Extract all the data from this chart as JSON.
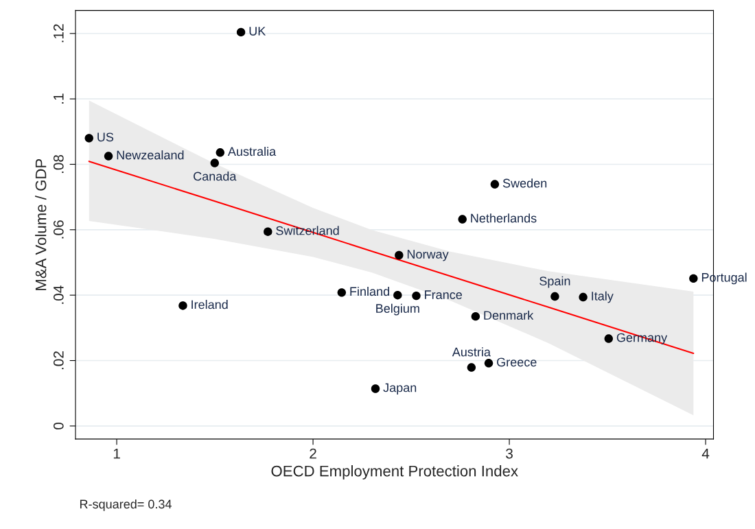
{
  "chart_data": {
    "type": "scatter",
    "xlabel": "OECD Employment Protection Index",
    "ylabel": "M&A Volume / GDP",
    "xlim": [
      0.79,
      4.04
    ],
    "ylim": [
      -0.004,
      0.127
    ],
    "xticks": [
      1,
      2,
      3,
      4
    ],
    "yticks": [
      {
        "value": 0,
        "label": "0"
      },
      {
        "value": 0.02,
        "label": ".02"
      },
      {
        "value": 0.04,
        "label": ".04"
      },
      {
        "value": 0.06,
        "label": ".06"
      },
      {
        "value": 0.08,
        "label": ".08"
      },
      {
        "value": 0.1,
        "label": ".1"
      },
      {
        "value": 0.12,
        "label": ".12"
      }
    ],
    "grid": "y",
    "legend": false,
    "series": [
      {
        "marker": "circle",
        "color": "#000000",
        "x": [
          1.633,
          0.859,
          0.958,
          1.527,
          1.499,
          1.77,
          1.337,
          2.146,
          2.431,
          2.526,
          2.438,
          2.761,
          2.926,
          2.828,
          2.895,
          2.807,
          2.318,
          3.232,
          3.376,
          3.506,
          3.938
        ],
        "values": [
          0.1204,
          0.088,
          0.0825,
          0.0836,
          0.0804,
          0.0594,
          0.0368,
          0.0408,
          0.04,
          0.0398,
          0.0522,
          0.0632,
          0.0739,
          0.0335,
          0.0192,
          0.0179,
          0.0114,
          0.0396,
          0.0394,
          0.0267,
          0.0451
        ]
      },
      {
        "type": "line",
        "color": "#ff0000",
        "x": [
          0.859,
          1.5,
          2.0,
          2.3,
          2.7,
          3.2,
          3.938
        ],
        "values": [
          0.0809,
          0.0687,
          0.0592,
          0.0534,
          0.0458,
          0.0363,
          0.0222
        ],
        "lower": [
          0.0627,
          0.0572,
          0.0517,
          0.0469,
          0.0383,
          0.0253,
          0.0033
        ],
        "upper": [
          0.0995,
          0.0802,
          0.0667,
          0.0599,
          0.0533,
          0.0473,
          0.0411
        ]
      }
    ],
    "annotations": [
      {
        "text": "UK",
        "x": 1.633,
        "y": 0.1204
      },
      {
        "text": "US",
        "x": 0.859,
        "y": 0.088
      },
      {
        "text": "Newzealand",
        "x": 0.958,
        "y": 0.0825
      },
      {
        "text": "Australia",
        "x": 1.527,
        "y": 0.0836
      },
      {
        "text": "Canada",
        "x": 1.499,
        "y": 0.0804
      },
      {
        "text": "Switzerland",
        "x": 1.77,
        "y": 0.0594
      },
      {
        "text": "Ireland",
        "x": 1.337,
        "y": 0.0368
      },
      {
        "text": "Finland",
        "x": 2.146,
        "y": 0.0408
      },
      {
        "text": "Belgium",
        "x": 2.431,
        "y": 0.04
      },
      {
        "text": "France",
        "x": 2.526,
        "y": 0.0398
      },
      {
        "text": "Norway",
        "x": 2.438,
        "y": 0.0522
      },
      {
        "text": "Netherlands",
        "x": 2.761,
        "y": 0.0632
      },
      {
        "text": "Sweden",
        "x": 2.926,
        "y": 0.0739
      },
      {
        "text": "Denmark",
        "x": 2.828,
        "y": 0.0335
      },
      {
        "text": "Greece",
        "x": 2.895,
        "y": 0.0192
      },
      {
        "text": "Austria",
        "x": 2.807,
        "y": 0.0179
      },
      {
        "text": "Japan",
        "x": 2.318,
        "y": 0.0114
      },
      {
        "text": "Spain",
        "x": 3.232,
        "y": 0.0396
      },
      {
        "text": "Italy",
        "x": 3.376,
        "y": 0.0394
      },
      {
        "text": "Germany",
        "x": 3.506,
        "y": 0.0267
      },
      {
        "text": "Portugal",
        "x": 3.938,
        "y": 0.0451
      },
      "R-squared= 0.34"
    ]
  }
}
